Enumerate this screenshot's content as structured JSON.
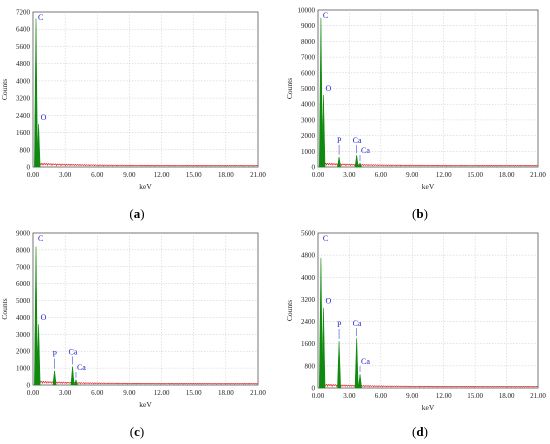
{
  "colors": {
    "spectrum": "#0f8a0f",
    "background_noise": "#e02020",
    "labels": "#2020d0",
    "grid": "#c8c8c8"
  },
  "chart_data": [
    {
      "type": "line",
      "panel": "a",
      "caption": "(a)",
      "xlabel": "keV",
      "ylabel": "Counts",
      "xlim": [
        0,
        21
      ],
      "ylim": [
        0,
        7200
      ],
      "x_ticks": [
        "0.00",
        "3.00",
        "6.00",
        "9.00",
        "12.00",
        "15.00",
        "18.00",
        "21.00"
      ],
      "y_ticks": [
        "0",
        "800",
        "1600",
        "2400",
        "3200",
        "4000",
        "4800",
        "5600",
        "6400",
        "7200"
      ],
      "grid": true,
      "peaks": [
        {
          "label": "C",
          "x": 0.28,
          "y": 6900
        },
        {
          "label": "O",
          "x": 0.52,
          "y": 2000
        }
      ]
    },
    {
      "type": "line",
      "panel": "b",
      "caption": "(b)",
      "xlabel": "keV",
      "ylabel": "Counts",
      "xlim": [
        0,
        21
      ],
      "ylim": [
        0,
        10000
      ],
      "x_ticks": [
        "0.00",
        "3.00",
        "6.00",
        "9.00",
        "12.00",
        "15.00",
        "18.00",
        "21.00"
      ],
      "y_ticks": [
        "0",
        "1000",
        "2000",
        "3000",
        "4000",
        "5000",
        "6000",
        "7000",
        "8000",
        "9000",
        "10000"
      ],
      "grid": true,
      "peaks": [
        {
          "label": "C",
          "x": 0.28,
          "y": 9500
        },
        {
          "label": "O",
          "x": 0.52,
          "y": 4600
        },
        {
          "label": "P",
          "x": 2.01,
          "y": 650
        },
        {
          "label": "Ca",
          "x": 3.69,
          "y": 750
        },
        {
          "label": "Ca",
          "x": 4.01,
          "y": 250
        }
      ]
    },
    {
      "type": "line",
      "panel": "c",
      "caption": "(c)",
      "xlabel": "keV",
      "ylabel": "Counts",
      "xlim": [
        0,
        21
      ],
      "ylim": [
        0,
        9000
      ],
      "x_ticks": [
        "0.00",
        "3.00",
        "6.00",
        "9.00",
        "12.00",
        "15.00",
        "18.00",
        "21.00"
      ],
      "y_ticks": [
        "0",
        "1000",
        "2000",
        "3000",
        "4000",
        "5000",
        "6000",
        "7000",
        "8000",
        "9000"
      ],
      "grid": true,
      "peaks": [
        {
          "label": "C",
          "x": 0.28,
          "y": 8200
        },
        {
          "label": "O",
          "x": 0.52,
          "y": 3600
        },
        {
          "label": "P",
          "x": 2.01,
          "y": 850
        },
        {
          "label": "Ca",
          "x": 3.69,
          "y": 1100
        },
        {
          "label": "Ca",
          "x": 4.01,
          "y": 300
        }
      ]
    },
    {
      "type": "line",
      "panel": "d",
      "caption": "(d)",
      "xlabel": "keV",
      "ylabel": "Counts",
      "xlim": [
        0,
        21
      ],
      "ylim": [
        0,
        5600
      ],
      "x_ticks": [
        "0.00",
        "3.00",
        "6.00",
        "9.00",
        "12.00",
        "15.00",
        "18.00",
        "21.00"
      ],
      "y_ticks": [
        "0",
        "800",
        "1600",
        "2400",
        "3200",
        "4000",
        "4800",
        "5600"
      ],
      "grid": true,
      "peaks": [
        {
          "label": "C",
          "x": 0.28,
          "y": 4700
        },
        {
          "label": "O",
          "x": 0.52,
          "y": 2900
        },
        {
          "label": "P",
          "x": 2.01,
          "y": 1700
        },
        {
          "label": "Ca",
          "x": 3.69,
          "y": 1800
        },
        {
          "label": "Ca",
          "x": 4.01,
          "y": 500
        }
      ]
    }
  ]
}
